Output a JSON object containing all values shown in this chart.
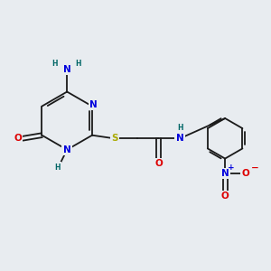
{
  "bg_color": "#e8ecf0",
  "bond_color": "#1a1a1a",
  "N_color": "#0000dd",
  "O_color": "#dd0000",
  "S_color": "#aaaa00",
  "H_color": "#006666",
  "lw": 1.3,
  "fs": 7.5,
  "fs_sub": 5.5,
  "xlim": [
    0,
    10
  ],
  "ylim": [
    0,
    10
  ],
  "figsize": [
    3.0,
    3.0
  ],
  "dpi": 100
}
